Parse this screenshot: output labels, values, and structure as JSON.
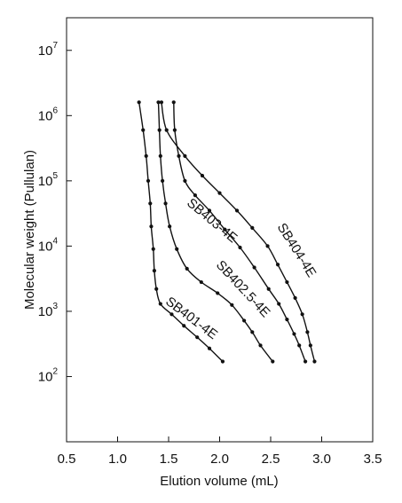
{
  "chart_data": {
    "type": "line",
    "title": "",
    "xlabel": "Elution volume (mL)",
    "ylabel": "Molecular weight (Pullulan)",
    "xlim": [
      0.5,
      3.5
    ],
    "ylim_log10": [
      1,
      7.5
    ],
    "y_scale": "log",
    "grid": false,
    "legend": "none",
    "x_ticks": [
      {
        "value": 0.5,
        "label": "0.5"
      },
      {
        "value": 1.0,
        "label": "1.0"
      },
      {
        "value": 1.5,
        "label": "1.5"
      },
      {
        "value": 2.0,
        "label": "2.0"
      },
      {
        "value": 2.5,
        "label": "2.5"
      },
      {
        "value": 3.0,
        "label": "3.0"
      },
      {
        "value": 3.5,
        "label": "3.5"
      }
    ],
    "y_ticks": [
      {
        "value": 100,
        "base": "10",
        "exp": "2"
      },
      {
        "value": 1000,
        "base": "10",
        "exp": "3"
      },
      {
        "value": 10000,
        "base": "10",
        "exp": "4"
      },
      {
        "value": 100000,
        "base": "10",
        "exp": "5"
      },
      {
        "value": 1000000,
        "base": "10",
        "exp": "6"
      },
      {
        "value": 10000000,
        "base": "10",
        "exp": "7"
      }
    ],
    "series": [
      {
        "name": "SB401-4E",
        "label": {
          "x": 1.7,
          "y": 700,
          "angle": 37
        },
        "points": [
          {
            "x": 1.21,
            "y": 1600000
          },
          {
            "x": 1.25,
            "y": 600000
          },
          {
            "x": 1.28,
            "y": 240000
          },
          {
            "x": 1.3,
            "y": 100000
          },
          {
            "x": 1.32,
            "y": 45000
          },
          {
            "x": 1.33,
            "y": 20000
          },
          {
            "x": 1.35,
            "y": 9000
          },
          {
            "x": 1.36,
            "y": 4200
          },
          {
            "x": 1.38,
            "y": 2200
          },
          {
            "x": 1.42,
            "y": 1300
          },
          {
            "x": 1.53,
            "y": 900
          },
          {
            "x": 1.65,
            "y": 600
          },
          {
            "x": 1.78,
            "y": 400
          },
          {
            "x": 1.9,
            "y": 270
          },
          {
            "x": 2.03,
            "y": 170
          }
        ]
      },
      {
        "name": "SB402.5-4E",
        "label": {
          "x": 2.2,
          "y": 2000,
          "angle": 47
        },
        "points": [
          {
            "x": 1.4,
            "y": 1600000
          },
          {
            "x": 1.41,
            "y": 600000
          },
          {
            "x": 1.42,
            "y": 240000
          },
          {
            "x": 1.44,
            "y": 100000
          },
          {
            "x": 1.47,
            "y": 45000
          },
          {
            "x": 1.51,
            "y": 20000
          },
          {
            "x": 1.58,
            "y": 9000
          },
          {
            "x": 1.68,
            "y": 4500
          },
          {
            "x": 1.82,
            "y": 2800
          },
          {
            "x": 1.98,
            "y": 1900
          },
          {
            "x": 2.12,
            "y": 1250
          },
          {
            "x": 2.24,
            "y": 720
          },
          {
            "x": 2.32,
            "y": 480
          },
          {
            "x": 2.4,
            "y": 300
          },
          {
            "x": 2.52,
            "y": 170
          }
        ]
      },
      {
        "name": "SB403-4E",
        "label": {
          "x": 1.9,
          "y": 22000,
          "angle": 40
        },
        "points": [
          {
            "x": 1.55,
            "y": 1600000
          },
          {
            "x": 1.56,
            "y": 600000
          },
          {
            "x": 1.6,
            "y": 240000
          },
          {
            "x": 1.66,
            "y": 100000
          },
          {
            "x": 1.76,
            "y": 60000
          },
          {
            "x": 1.9,
            "y": 35000
          },
          {
            "x": 2.05,
            "y": 18000
          },
          {
            "x": 2.2,
            "y": 9500
          },
          {
            "x": 2.34,
            "y": 4700
          },
          {
            "x": 2.48,
            "y": 2200
          },
          {
            "x": 2.58,
            "y": 1300
          },
          {
            "x": 2.66,
            "y": 750
          },
          {
            "x": 2.73,
            "y": 450
          },
          {
            "x": 2.78,
            "y": 300
          },
          {
            "x": 2.84,
            "y": 170
          }
        ]
      },
      {
        "name": "SB404-4E",
        "label": {
          "x": 2.72,
          "y": 8000,
          "angle": 58
        },
        "points": [
          {
            "x": 1.43,
            "y": 1600000
          },
          {
            "x": 1.48,
            "y": 600000
          },
          {
            "x": 1.66,
            "y": 240000
          },
          {
            "x": 1.83,
            "y": 120000
          },
          {
            "x": 2.0,
            "y": 65000
          },
          {
            "x": 2.17,
            "y": 35000
          },
          {
            "x": 2.32,
            "y": 19000
          },
          {
            "x": 2.47,
            "y": 10000
          },
          {
            "x": 2.57,
            "y": 5200
          },
          {
            "x": 2.66,
            "y": 2800
          },
          {
            "x": 2.74,
            "y": 1600
          },
          {
            "x": 2.81,
            "y": 900
          },
          {
            "x": 2.86,
            "y": 480
          },
          {
            "x": 2.89,
            "y": 300
          },
          {
            "x": 2.93,
            "y": 170
          }
        ]
      }
    ]
  }
}
